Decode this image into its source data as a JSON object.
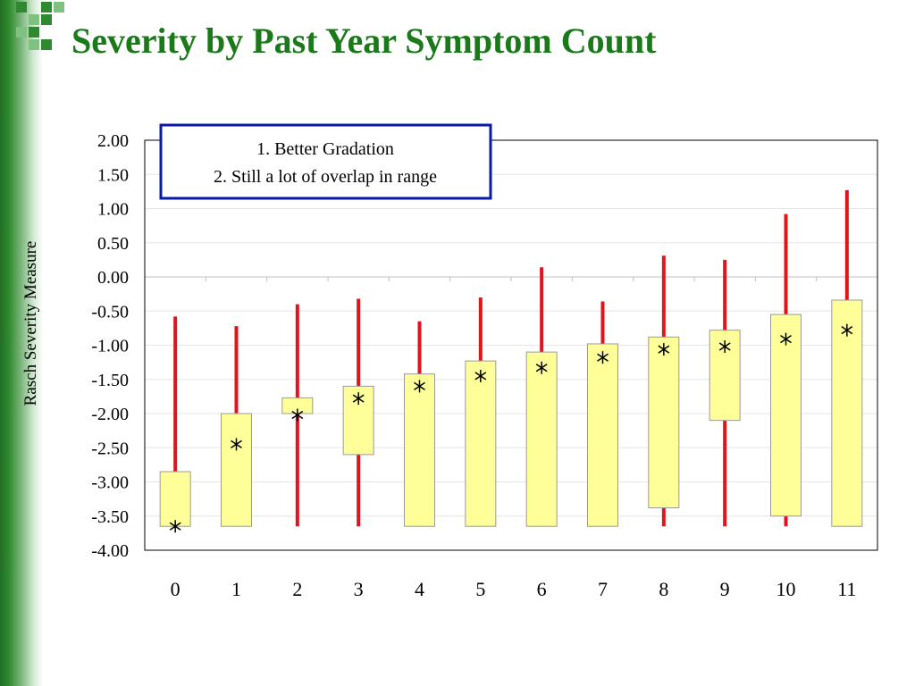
{
  "slide": {
    "title": "Severity by Past Year Symptom Count"
  },
  "annotation": {
    "lines": [
      "1. Better Gradation",
      "2. Still a lot of overlap in range"
    ]
  },
  "colors": {
    "title": "#1a7a1a",
    "range_line": "#e0141c",
    "box_fill": "#ffff99",
    "box_stroke": "#9a9a9a",
    "annotation_border": "#0a1aa6"
  },
  "chart_data": {
    "type": "box",
    "title": "",
    "xlabel": "",
    "ylabel": "Rasch Severity Measure",
    "ylim": [
      -4.0,
      2.0
    ],
    "grid": true,
    "y_ticks": [
      "2.00",
      "1.50",
      "1.00",
      "0.50",
      "0.00",
      "-0.50",
      "-1.00",
      "-1.50",
      "-2.00",
      "-2.50",
      "-3.00",
      "-3.50",
      "-4.00"
    ],
    "categories": [
      "0",
      "1",
      "2",
      "3",
      "4",
      "5",
      "6",
      "7",
      "8",
      "9",
      "10",
      "11"
    ],
    "range_max": [
      -0.58,
      -0.72,
      -0.4,
      -0.32,
      -0.65,
      -0.3,
      0.14,
      -0.36,
      0.31,
      0.25,
      0.92,
      1.27
    ],
    "range_min": [
      -3.65,
      -3.65,
      -3.65,
      -3.65,
      -3.65,
      -3.65,
      -3.65,
      -3.65,
      -3.65,
      -3.65,
      -3.65,
      -3.65
    ],
    "box_top": [
      -2.85,
      -2.0,
      -1.77,
      -1.6,
      -1.42,
      -1.23,
      -1.1,
      -0.98,
      -0.88,
      -0.78,
      -0.55,
      -0.34
    ],
    "box_bottom": [
      -3.65,
      -3.65,
      -2.0,
      -2.6,
      -3.65,
      -3.65,
      -3.65,
      -3.65,
      -3.38,
      -2.1,
      -3.5,
      -3.65
    ],
    "mean": [
      -3.65,
      -2.45,
      -2.02,
      -1.78,
      -1.6,
      -1.45,
      -1.33,
      -1.18,
      -1.06,
      -1.02,
      -0.91,
      -0.78
    ]
  }
}
